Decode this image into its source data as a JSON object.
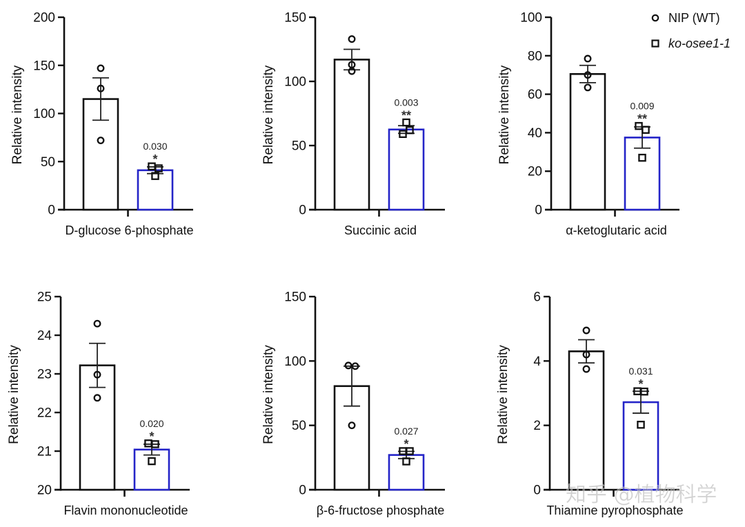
{
  "legend": {
    "items": [
      {
        "label": "NIP (WT)",
        "marker": "circle",
        "color": "#111111",
        "italic": false
      },
      {
        "label": "ko-osee1-1",
        "marker": "square",
        "color": "#2424c8",
        "italic": true
      }
    ]
  },
  "watermark": "知乎 @植物科学",
  "chart_data": [
    {
      "type": "bar",
      "title": "",
      "xlabel": "D-glucose 6-phosphate",
      "ylabel": "Relative intensity",
      "ylim": [
        0,
        200
      ],
      "yticks": [
        0,
        50,
        100,
        150,
        200
      ],
      "categories": [
        "NIP (WT)",
        "ko-osee1-1"
      ],
      "series": [
        {
          "name": "NIP (WT)",
          "mean": 115,
          "sem": 22,
          "points": [
            147,
            126,
            72
          ]
        },
        {
          "name": "ko-osee1-1",
          "mean": 41,
          "sem": 3.5,
          "points": [
            45,
            43,
            35
          ]
        }
      ],
      "annotation": {
        "pvalue": "0.030",
        "stars": "*"
      }
    },
    {
      "type": "bar",
      "title": "",
      "xlabel": "Succinic acid",
      "ylabel": "Relative intensity",
      "ylim": [
        0,
        150
      ],
      "yticks": [
        0,
        50,
        100,
        150
      ],
      "categories": [
        "NIP (WT)",
        "ko-osee1-1"
      ],
      "series": [
        {
          "name": "NIP (WT)",
          "mean": 117,
          "sem": 8,
          "points": [
            133,
            113,
            108
          ]
        },
        {
          "name": "ko-osee1-1",
          "mean": 62.5,
          "sem": 3,
          "points": [
            68,
            62,
            59
          ]
        }
      ],
      "annotation": {
        "pvalue": "0.003",
        "stars": "**"
      }
    },
    {
      "type": "bar",
      "title": "",
      "xlabel": "α-ketoglutaric acid",
      "ylabel": "Relative intensity",
      "ylim": [
        0,
        100
      ],
      "yticks": [
        0,
        20,
        40,
        60,
        80,
        100
      ],
      "categories": [
        "NIP (WT)",
        "ko-osee1-1"
      ],
      "series": [
        {
          "name": "NIP (WT)",
          "mean": 70.5,
          "sem": 4.5,
          "points": [
            78.5,
            70,
            63.5
          ]
        },
        {
          "name": "ko-osee1-1",
          "mean": 37.5,
          "sem": 5.5,
          "points": [
            43.5,
            41.5,
            27
          ]
        }
      ],
      "annotation": {
        "pvalue": "0.009",
        "stars": "**"
      }
    },
    {
      "type": "bar",
      "title": "",
      "xlabel": "Flavin mononucleotide",
      "ylabel": "Relative intensity",
      "ylim": [
        20,
        25
      ],
      "yticks": [
        20,
        21,
        22,
        23,
        24,
        25
      ],
      "categories": [
        "NIP (WT)",
        "ko-osee1-1"
      ],
      "series": [
        {
          "name": "NIP (WT)",
          "mean": 23.22,
          "sem": 0.57,
          "points": [
            24.3,
            22.98,
            22.38
          ]
        },
        {
          "name": "ko-osee1-1",
          "mean": 21.04,
          "sem": 0.14,
          "points": [
            21.2,
            21.18,
            20.74
          ]
        }
      ],
      "annotation": {
        "pvalue": "0.020",
        "stars": "*"
      }
    },
    {
      "type": "bar",
      "title": "",
      "xlabel": "β-6-fructose phosphate",
      "ylabel": "Relative intensity",
      "ylim": [
        0,
        150
      ],
      "yticks": [
        0,
        50,
        100,
        150
      ],
      "categories": [
        "NIP (WT)",
        "ko-osee1-1"
      ],
      "series": [
        {
          "name": "NIP (WT)",
          "mean": 80.5,
          "sem": 15.5,
          "points": [
            96.5,
            96,
            50
          ]
        },
        {
          "name": "ko-osee1-1",
          "mean": 27,
          "sem": 2.8,
          "points": [
            30,
            30,
            22
          ]
        }
      ],
      "annotation": {
        "pvalue": "0.027",
        "stars": "*"
      }
    },
    {
      "type": "bar",
      "title": "",
      "xlabel": "Thiamine pyrophosphate",
      "ylabel": "Relative intensity",
      "ylim": [
        0,
        6
      ],
      "yticks": [
        0,
        2,
        4,
        6
      ],
      "categories": [
        "NIP (WT)",
        "ko-osee1-1"
      ],
      "series": [
        {
          "name": "NIP (WT)",
          "mean": 4.3,
          "sem": 0.36,
          "points": [
            4.95,
            4.2,
            3.75
          ]
        },
        {
          "name": "ko-osee1-1",
          "mean": 2.72,
          "sem": 0.34,
          "points": [
            3.06,
            3.05,
            2.02
          ]
        }
      ],
      "annotation": {
        "pvalue": "0.031",
        "stars": "*"
      }
    }
  ]
}
